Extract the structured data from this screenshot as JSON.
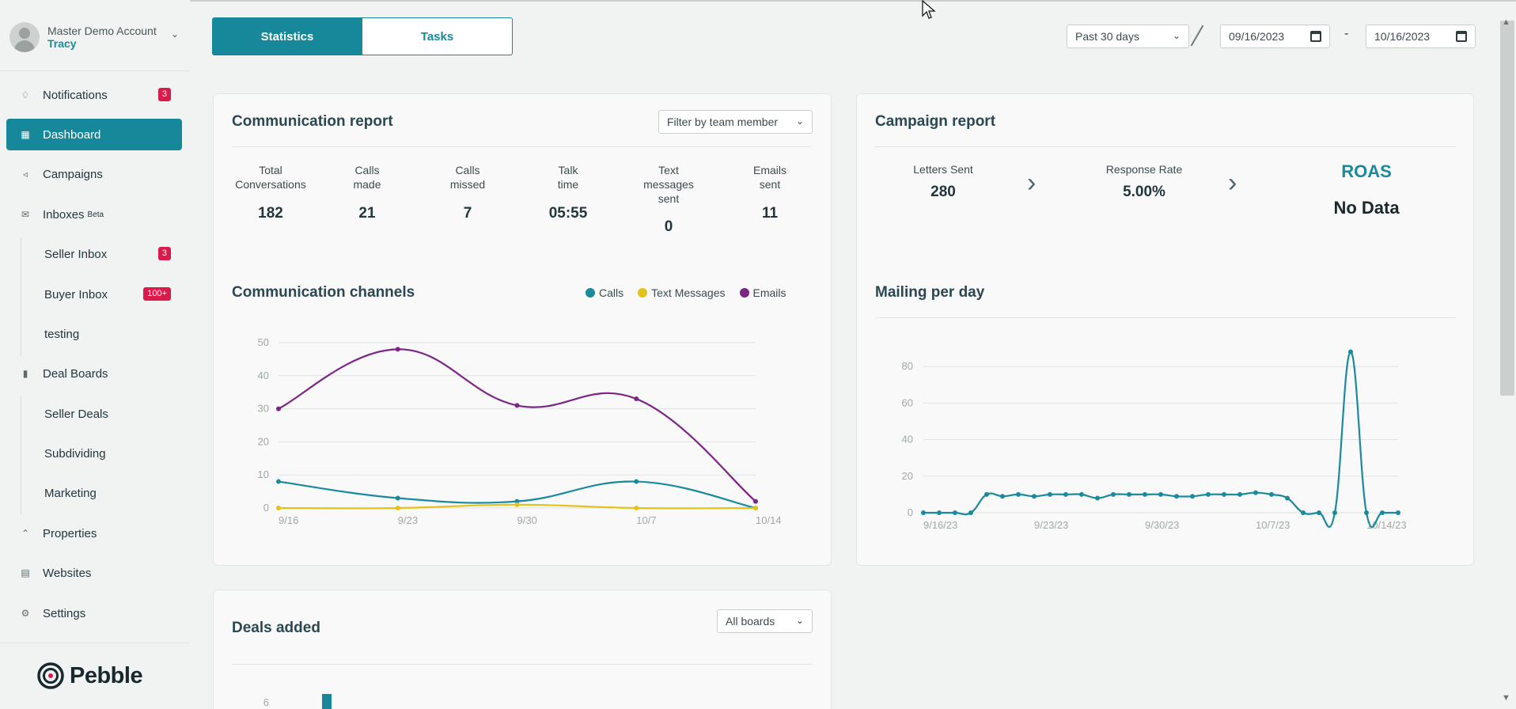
{
  "account": {
    "name": "Master Demo Account",
    "user": "Tracy"
  },
  "nav": {
    "notifications": {
      "label": "Notifications",
      "badge": "3"
    },
    "dashboard": {
      "label": "Dashboard"
    },
    "campaigns": {
      "label": "Campaigns"
    },
    "inboxes": {
      "label": "Inboxes",
      "tag": "Beta"
    },
    "seller_inbox": {
      "label": "Seller Inbox",
      "badge": "3"
    },
    "buyer_inbox": {
      "label": "Buyer Inbox",
      "badge": "100+"
    },
    "testing": {
      "label": "testing"
    },
    "deal_boards": {
      "label": "Deal Boards"
    },
    "seller_deals": {
      "label": "Seller Deals"
    },
    "subdividing": {
      "label": "Subdividing"
    },
    "marketing": {
      "label": "Marketing"
    },
    "properties": {
      "label": "Properties"
    },
    "websites": {
      "label": "Websites"
    },
    "settings": {
      "label": "Settings"
    }
  },
  "logo": {
    "text": "Pebble"
  },
  "tabs": {
    "statistics": "Statistics",
    "tasks": "Tasks"
  },
  "date_range": {
    "preset": "Past 30 days",
    "start": "09/16/2023",
    "separator": "-",
    "end": "10/16/2023"
  },
  "communication_report": {
    "title": "Communication report",
    "filter": "Filter by team member",
    "stats": [
      {
        "label_lines": [
          "Total",
          "Conversations"
        ],
        "value": "182"
      },
      {
        "label_lines": [
          "Calls",
          "made"
        ],
        "value": "21"
      },
      {
        "label_lines": [
          "Calls",
          "missed"
        ],
        "value": "7"
      },
      {
        "label_lines": [
          "Talk",
          "time"
        ],
        "value": "05:55"
      },
      {
        "label_lines": [
          "Text",
          "messages",
          "sent"
        ],
        "value": "0"
      },
      {
        "label_lines": [
          "Emails",
          "sent"
        ],
        "value": "11"
      }
    ]
  },
  "campaign_report": {
    "title": "Campaign report",
    "letters_sent": {
      "label": "Letters Sent",
      "value": "280"
    },
    "response_rate": {
      "label": "Response Rate",
      "value": "5.00%"
    },
    "roas": {
      "label": "ROAS",
      "value": "No Data"
    }
  },
  "deals_added": {
    "title": "Deals added",
    "filter": "All boards"
  },
  "colors": {
    "brand": "#16889a",
    "calls": "#1a8a9c",
    "texts": "#e3c21b",
    "emails": "#7b2585",
    "badge": "#d91a4a"
  },
  "chart_data": [
    {
      "type": "line",
      "title": "Communication channels",
      "x": [
        "9/16",
        "9/23",
        "9/30",
        "10/7",
        "10/14"
      ],
      "ylim": [
        0,
        50
      ],
      "yticks": [
        0,
        10,
        20,
        30,
        40,
        50
      ],
      "series": [
        {
          "name": "Calls",
          "color": "#1a8a9c",
          "values": [
            8,
            3,
            2,
            8,
            0
          ]
        },
        {
          "name": "Text Messages",
          "color": "#e3c21b",
          "values": [
            0,
            0,
            1,
            0,
            0
          ]
        },
        {
          "name": "Emails",
          "color": "#7b2585",
          "values": [
            30,
            48,
            31,
            33,
            2
          ]
        }
      ],
      "grid": true,
      "legend": "top-right"
    },
    {
      "type": "line",
      "title": "Mailing per day",
      "x": [
        "9/16/23",
        "9/17/23",
        "9/18/23",
        "9/19/23",
        "9/20/23",
        "9/21/23",
        "9/22/23",
        "9/23/23",
        "9/24/23",
        "9/25/23",
        "9/26/23",
        "9/27/23",
        "9/28/23",
        "9/29/23",
        "9/30/23",
        "10/1/23",
        "10/2/23",
        "10/3/23",
        "10/4/23",
        "10/5/23",
        "10/6/23",
        "10/7/23",
        "10/8/23",
        "10/9/23",
        "10/10/23",
        "10/11/23",
        "10/12/23",
        "10/13/23",
        "10/14/23",
        "10/15/23",
        "10/16/23"
      ],
      "xticks": [
        "9/16/23",
        "9/23/23",
        "9/30/23",
        "10/7/23",
        "10/14/23"
      ],
      "ylim": [
        0,
        90
      ],
      "yticks": [
        0,
        20,
        40,
        60,
        80
      ],
      "series": [
        {
          "name": "Mailing",
          "color": "#1a8a9c",
          "values": [
            0,
            0,
            0,
            0,
            10,
            9,
            10,
            9,
            10,
            10,
            10,
            8,
            10,
            10,
            10,
            10,
            9,
            9,
            10,
            10,
            10,
            11,
            10,
            8,
            0,
            0,
            0,
            88,
            0,
            0,
            0
          ]
        }
      ],
      "grid": true
    },
    {
      "type": "bar",
      "title": "Deals added",
      "yticks": [
        6
      ],
      "series": [
        {
          "name": "Deals",
          "color": "#16889a"
        }
      ]
    }
  ]
}
